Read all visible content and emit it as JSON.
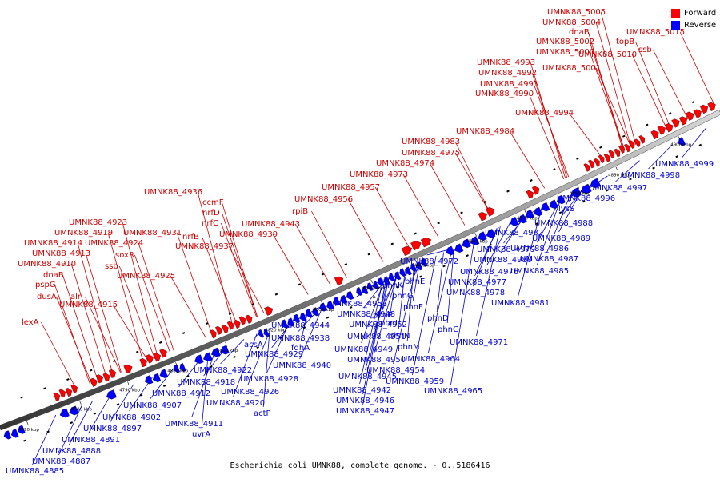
{
  "title": "Escherichia coli UMNK88, complete genome. - 0..5186416",
  "legend": {
    "forward": {
      "label": "Forward",
      "color": "#ff0000"
    },
    "reverse": {
      "label": "Reverse",
      "color": "#0000ff"
    }
  },
  "axis_ticks": [
    "4770 kbp",
    "4780 kbp",
    "4790 kbp",
    "4800 kbp",
    "4810 kbp",
    "4820 kbp",
    "4830 kbp",
    "4840 kbp",
    "4850 kbp",
    "4860 kbp",
    "4870 kbp",
    "4880 kbp",
    "4890 kbp",
    "4900 kbp"
  ],
  "forward_labels": [
    "lexA",
    "dusA",
    "pspG",
    "dnaB",
    "UMNK88_4910",
    "UMNK88_4913",
    "UMNK88_4914",
    "UMNK88_4919",
    "UMNK88_4923",
    "alr",
    "UMNK88_4915",
    "ssb",
    "soxR",
    "UMNK88_4924",
    "UMNK88_4931",
    "UMNK88_4925",
    "UMNK88_4936",
    "ccmF",
    "nrfD",
    "nrfC",
    "nrfB",
    "UMNK88_4937",
    "UMNK88_4939",
    "UMNK88_4943",
    "rpiB",
    "UMNK88_4956",
    "UMNK88_4957",
    "UMNK88_4973",
    "UMNK88_4974",
    "UMNK88_4975",
    "UMNK88_4983",
    "UMNK88_4984",
    "UMNK88_4990",
    "UMNK88_4991",
    "UMNK88_4992",
    "UMNK88_4993",
    "UMNK88_4994",
    "UMNK88_5000",
    "UMNK88_5001",
    "UMNK88_5002",
    "dnaB",
    "UMNK88_5004",
    "UMNK88_5005",
    "UMNK88_5010",
    "topB",
    "ssb",
    "UMNK88_5015"
  ],
  "reverse_labels": [
    "UMNK88_4885",
    "UMNK88_4887",
    "UMNK88_4888",
    "UMNK88_4891",
    "UMNK88_4897",
    "UMNK88_4902",
    "UMNK88_4907",
    "UMNK88_4911",
    "uvrA",
    "UMNK88_4912",
    "UMNK88_4918",
    "UMNK88_4920",
    "actP",
    "UMNK88_4922",
    "UMNK88_4926",
    "UMNK88_4928",
    "UMNK88_4929",
    "acsA",
    "UMNK88_4938",
    "fdhA",
    "UMNK88_4940",
    "UMNK88_4944",
    "UMNK88_4942",
    "UMNK88_4945",
    "UMNK88_4946",
    "UMNK88_4947",
    "UMNK88_4948",
    "UMNK88_4949",
    "UMNK88_4950",
    "UMNK88_4953",
    "UMNK88_4952",
    "UMNK88_4951",
    "phnP",
    "UMNK88_4954",
    "UMNK88_4959",
    "phnK",
    "phnL",
    "phnN",
    "phnM",
    "phnG",
    "phnF",
    "phnE",
    "UMNK88_4964",
    "UMNK88_4965",
    "phnD",
    "phnC",
    "UMNK88_4971",
    "UMNK88_4972",
    "UMNK88_4976",
    "UMNK88_4977",
    "UMNK88_4978",
    "UMNK88_4979",
    "UMNK88_4980",
    "UMNK88_4981",
    "UMNK88_4982",
    "UMNK88_4985",
    "UMNK88_4986",
    "UMNK88_4987",
    "UMNK88_4988",
    "UMNK88_4989",
    "lysS",
    "UMNK88_4996",
    "UMNK88_4997",
    "UMNK88_4998",
    "UMNK88_4999"
  ]
}
